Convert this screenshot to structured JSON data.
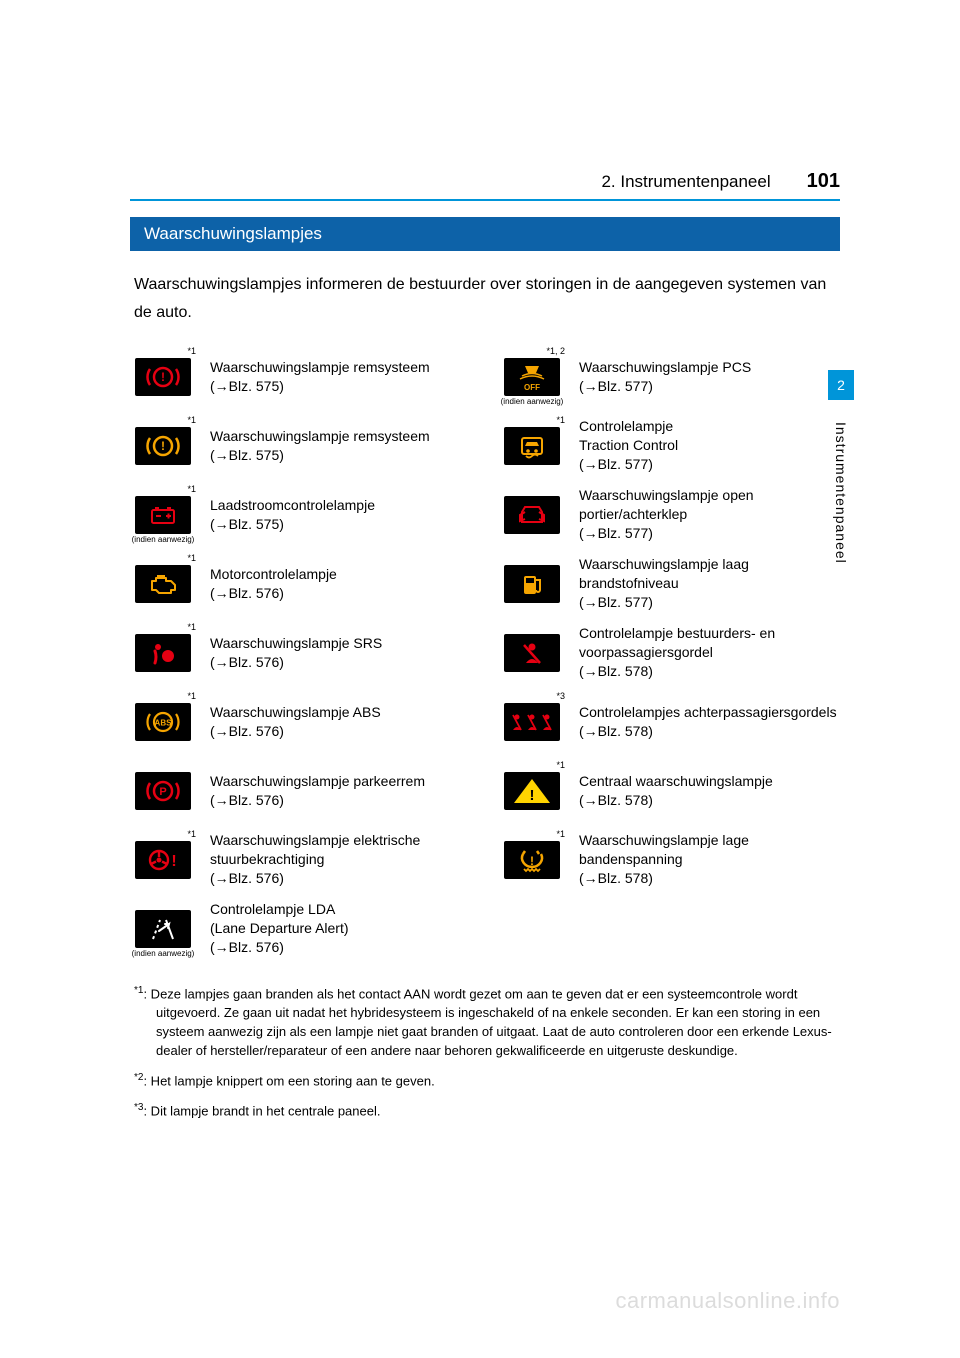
{
  "header": {
    "section_title": "2. Instrumentenpaneel",
    "page_number": "101",
    "rule_color": "#0095d9"
  },
  "side": {
    "tab_number": "2",
    "tab_label": "Instrumentenpaneel",
    "tab_bg": "#0095d9"
  },
  "heading": {
    "text": "Waarschuwingslampjes",
    "bg": "#0d62a8",
    "color": "#ffffff"
  },
  "intro": "Waarschuwingslampjes informeren de bestuurder over storingen in de aangegeven systemen van de auto.",
  "icon_colors": {
    "red": "#e60012",
    "amber": "#f6a500",
    "yellow": "#ffd400",
    "white": "#ffffff",
    "black_bg": "#000000"
  },
  "left": [
    {
      "id": "brake-red",
      "sup": "*1",
      "sub": "",
      "color": "red",
      "label": "Waarschuwingslampje remsysteem\n(→Blz. 575)"
    },
    {
      "id": "brake-amber",
      "sup": "*1",
      "sub": "",
      "color": "amber",
      "label": "Waarschuwingslampje remsysteem (→Blz. 575)"
    },
    {
      "id": "charge",
      "sup": "*1",
      "sub": "(indien aanwezig)",
      "color": "red",
      "label": "Laadstroomcontrolelampje\n(→Blz. 575)"
    },
    {
      "id": "engine",
      "sup": "*1",
      "sub": "",
      "color": "amber",
      "label": "Motorcontrolelampje\n(→Blz. 576)"
    },
    {
      "id": "srs",
      "sup": "*1",
      "sub": "",
      "color": "red",
      "label": "Waarschuwingslampje SRS\n(→Blz. 576)"
    },
    {
      "id": "abs",
      "sup": "*1",
      "sub": "",
      "color": "amber",
      "label": "Waarschuwingslampje ABS\n(→Blz. 576)"
    },
    {
      "id": "parkbrake",
      "sup": "",
      "sub": "",
      "color": "red",
      "label": "Waarschuwingslampje parkeerrem\n(→Blz. 576)"
    },
    {
      "id": "eps",
      "sup": "*1",
      "sub": "",
      "color": "red",
      "label": "Waarschuwingslampje elektrische stuurbekrachtiging\n(→Blz. 576)"
    },
    {
      "id": "lda",
      "sup": "",
      "sub": "(indien  aanwezig)",
      "color": "white",
      "label": "Controlelampje LDA\n(Lane Departure Alert)\n(→Blz. 576)"
    }
  ],
  "right": [
    {
      "id": "pcs",
      "sup": "*1, 2",
      "sub": "(indien aanwezig)",
      "color": "amber",
      "label": "Waarschuwingslampje PCS\n(→Blz. 577)"
    },
    {
      "id": "traction",
      "sup": "*1",
      "sub": "",
      "color": "amber",
      "label": "Controlelampje\nTraction Control\n(→Blz. 577)"
    },
    {
      "id": "dooropen",
      "sup": "",
      "sub": "",
      "color": "red",
      "label": "Waarschuwingslampje open portier/achterklep\n(→Blz. 577)"
    },
    {
      "id": "fuel",
      "sup": "",
      "sub": "",
      "color": "amber",
      "label": "Waarschuwingslampje laag brandstofniveau\n(→Blz. 577)"
    },
    {
      "id": "frontbelt",
      "sup": "",
      "sub": "",
      "color": "red",
      "label": "Controlelampje bestuurders- en voorpassagiersgordel\n(→Blz. 578)"
    },
    {
      "id": "rearbelt",
      "sup": "*3",
      "sub": "",
      "color": "red",
      "label": "Controlelampjes achterpassagiersgordels\n(→Blz. 578)"
    },
    {
      "id": "master",
      "sup": "*1",
      "sub": "",
      "color": "yellow",
      "label": "Centraal waarschuwingslampje\n(→Blz. 578)"
    },
    {
      "id": "tpms",
      "sup": "*1",
      "sub": "",
      "color": "amber",
      "label": "Waarschuwingslampje lage bandenspanning\n(→Blz. 578)"
    }
  ],
  "footnotes": [
    {
      "sup": "*1",
      "text": ": Deze lampjes gaan branden als het contact AAN wordt gezet om aan te geven dat er een systeemcontrole wordt uitgevoerd. Ze gaan uit nadat het hybridesysteem is ingeschakeld of na enkele seconden. Er kan een storing in een systeem aanwezig zijn als een lampje niet gaat branden of uitgaat. Laat de auto controleren door een erkende Lexus-dealer of hersteller/reparateur of een andere naar behoren gekwalificeerde en uitgeruste deskundige."
    },
    {
      "sup": "*2",
      "text": ": Het lampje knippert om een storing aan te geven."
    },
    {
      "sup": "*3",
      "text": ": Dit lampje brandt in het centrale paneel."
    }
  ],
  "watermark": "carmanualsonline.info"
}
